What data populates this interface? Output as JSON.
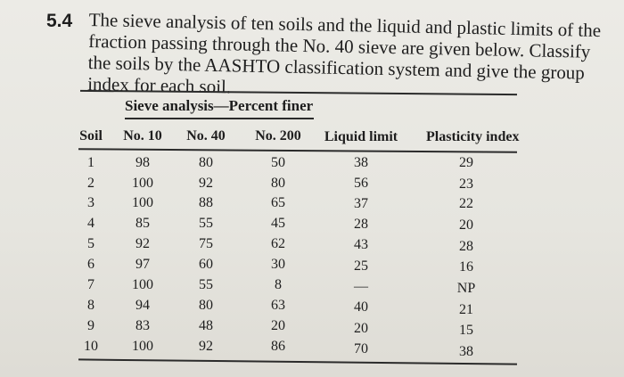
{
  "problem": {
    "number": "5.4",
    "text": "The sieve analysis of ten soils and the liquid and plastic limits of the fraction passing through the No. 40 sieve are given below. Classify the soils by the AASHTO classification system and give the group index for each soil."
  },
  "table": {
    "group_header": "Sieve analysis—Percent finer",
    "headers": [
      "Soil",
      "No. 10",
      "No. 40",
      "No. 200",
      "Liquid limit",
      "Plasticity index"
    ],
    "rows": [
      [
        "1",
        "98",
        "80",
        "50",
        "38",
        "29"
      ],
      [
        "2",
        "100",
        "92",
        "80",
        "56",
        "23"
      ],
      [
        "3",
        "100",
        "88",
        "65",
        "37",
        "22"
      ],
      [
        "4",
        "85",
        "55",
        "45",
        "28",
        "20"
      ],
      [
        "5",
        "92",
        "75",
        "62",
        "43",
        "28"
      ],
      [
        "6",
        "97",
        "60",
        "30",
        "25",
        "16"
      ],
      [
        "7",
        "100",
        "55",
        "8",
        "—",
        "NP"
      ],
      [
        "8",
        "94",
        "80",
        "63",
        "40",
        "21"
      ],
      [
        "9",
        "83",
        "48",
        "20",
        "20",
        "15"
      ],
      [
        "10",
        "100",
        "92",
        "86",
        "70",
        "38"
      ]
    ]
  }
}
